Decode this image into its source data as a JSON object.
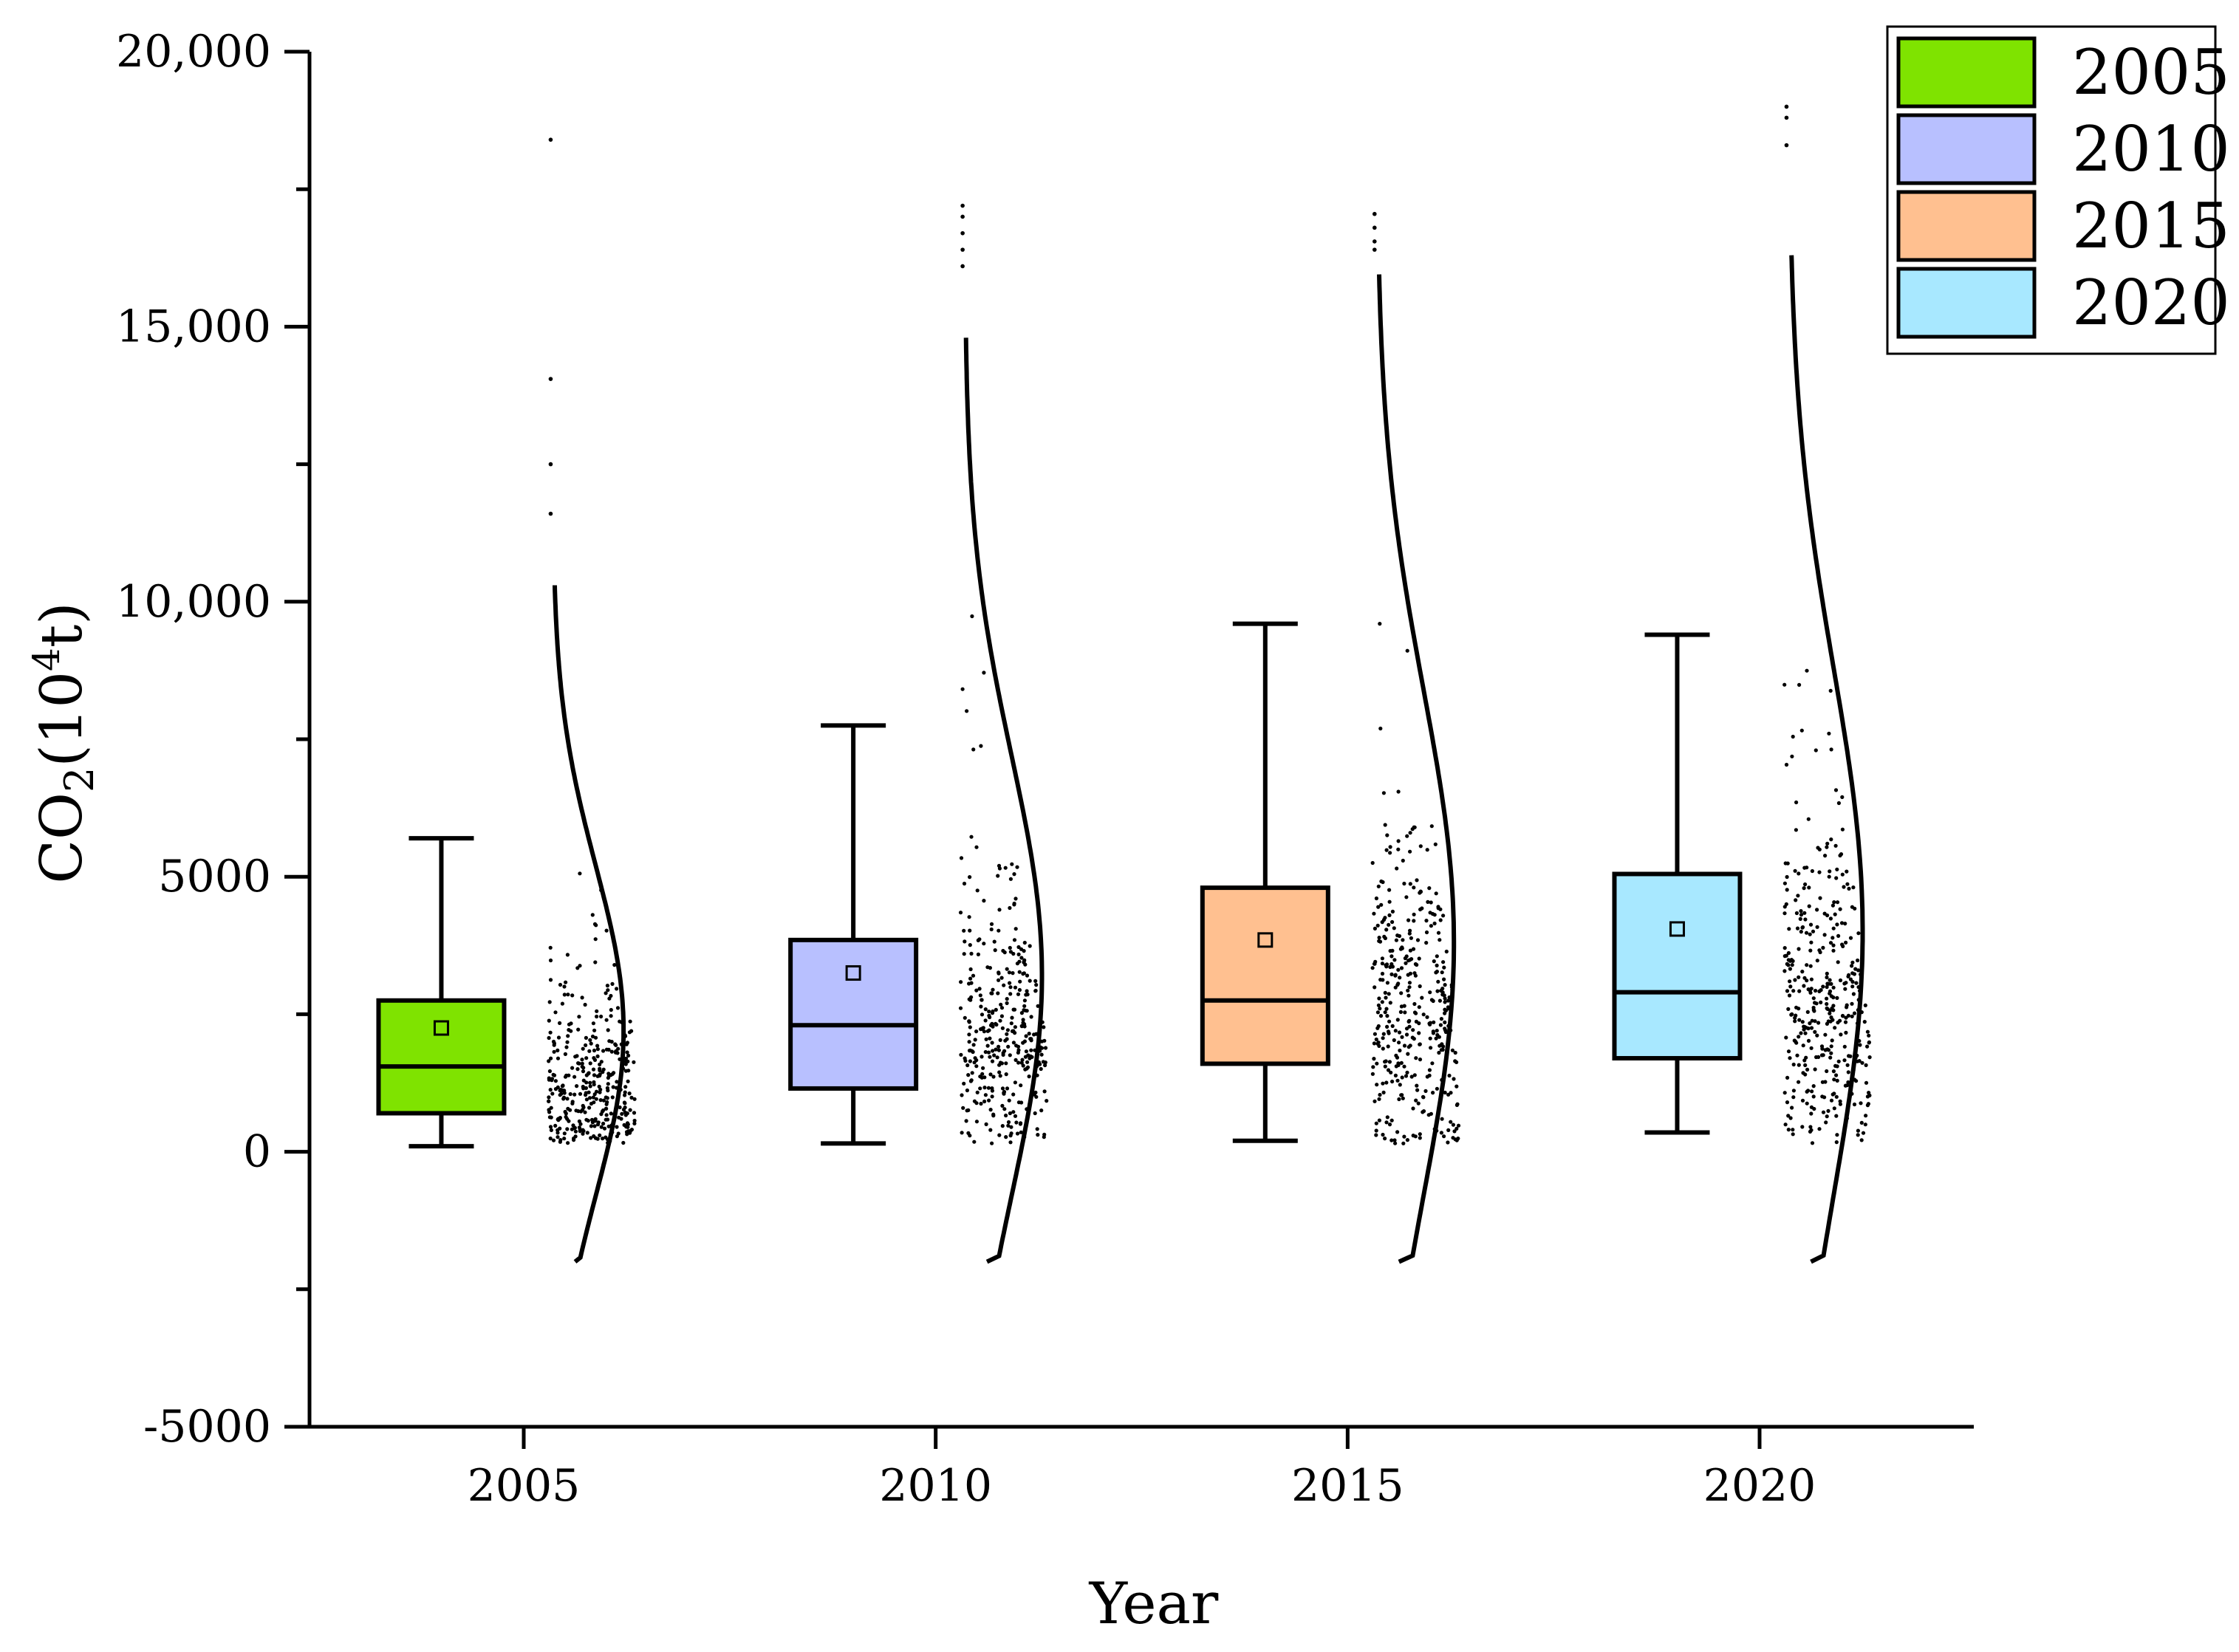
{
  "chart_data": {
    "type": "box",
    "title": "",
    "xlabel": "Year",
    "ylabel": "CO",
    "ylabel_sub": "2",
    "ylabel_unit_open": "(10",
    "ylabel_unit_sup": "4",
    "ylabel_unit_close": "t)",
    "ylim": [
      -5000,
      20000
    ],
    "yticks": [
      {
        "value": -5000,
        "label": "-5000"
      },
      {
        "value": 0,
        "label": "0"
      },
      {
        "value": 5000,
        "label": "5000"
      },
      {
        "value": 10000,
        "label": "10,000"
      },
      {
        "value": 15000,
        "label": "15,000"
      },
      {
        "value": 20000,
        "label": "20,000"
      }
    ],
    "xticks": [
      {
        "value": 2005,
        "label": "2005"
      },
      {
        "value": 2010,
        "label": "2010"
      },
      {
        "value": 2015,
        "label": "2015"
      },
      {
        "value": 2020,
        "label": "2020"
      }
    ],
    "xlim": [
      2002.4,
      2022.6
    ],
    "legend_position": "top-right",
    "series": [
      {
        "name": "2005",
        "box_x": 2004,
        "scatter_x": 2005.3,
        "color": "#7fe300",
        "whisker_low": 100,
        "q1": 700,
        "median": 1550,
        "q3": 2750,
        "whisker_high": 5700,
        "mean": 2250,
        "curve_mean": 2200,
        "curve_sd": 3000,
        "curve_height": 1.1,
        "curve_range": [
          -2000,
          10300
        ],
        "outliers": [
          18400,
          14050,
          12500,
          11600
        ],
        "dense": {
          "n": 360,
          "center": 1200,
          "spread": 1300,
          "max": 8000
        }
      },
      {
        "name": "2010",
        "box_x": 2009,
        "scatter_x": 2010.3,
        "color": "#b8c0ff",
        "whisker_low": 150,
        "q1": 1150,
        "median": 2300,
        "q3": 3850,
        "whisker_high": 7750,
        "mean": 3250,
        "curve_mean": 3200,
        "curve_sd": 4000,
        "curve_height": 1.2,
        "curve_range": [
          -2000,
          14800
        ],
        "outliers": [
          17200,
          17000,
          16700,
          16400,
          16100
        ],
        "dense": {
          "n": 360,
          "center": 2000,
          "spread": 1800,
          "max": 10400
        }
      },
      {
        "name": "2015",
        "box_x": 2014,
        "scatter_x": 2015.3,
        "color": "#ffc090",
        "whisker_low": 200,
        "q1": 1600,
        "median": 2750,
        "q3": 4800,
        "whisker_high": 9600,
        "mean": 3850,
        "curve_mean": 3800,
        "curve_sd": 4600,
        "curve_height": 1.2,
        "curve_range": [
          -2000,
          15950
        ],
        "outliers": [
          17050,
          16800,
          16550,
          16400
        ],
        "dense": {
          "n": 380,
          "center": 2500,
          "spread": 2300,
          "max": 13500
        }
      },
      {
        "name": "2020",
        "box_x": 2019,
        "scatter_x": 2020.3,
        "color": "#a8e8ff",
        "whisker_low": 350,
        "q1": 1700,
        "median": 2900,
        "q3": 5050,
        "whisker_high": 9400,
        "mean": 4050,
        "curve_mean": 4000,
        "curve_sd": 4800,
        "curve_height": 1.15,
        "curve_range": [
          -2000,
          16300
        ],
        "outliers": [
          19000,
          18800,
          18300
        ],
        "dense": {
          "n": 380,
          "center": 2700,
          "spread": 2400,
          "max": 14000
        }
      }
    ]
  }
}
